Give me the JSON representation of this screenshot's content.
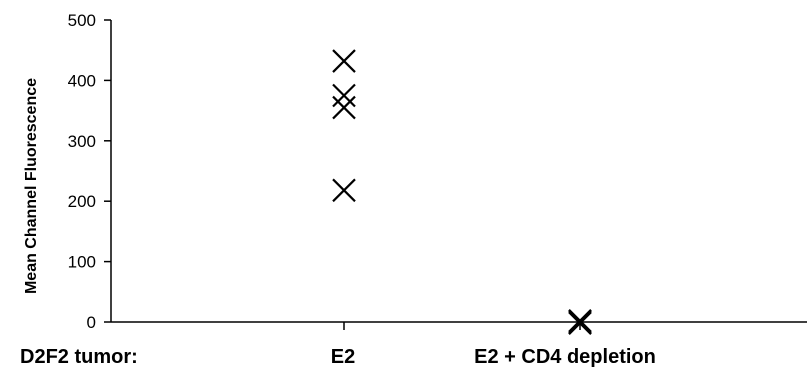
{
  "chart_data": {
    "type": "scatter",
    "ylabel": "Mean Channel Fluorescence",
    "x_prefix_label": "D2F2 tumor:",
    "categories": [
      "E2",
      "E2 + CD4 depletion"
    ],
    "yticks": [
      "0",
      "100",
      "200",
      "300",
      "400",
      "500"
    ],
    "ylim": [
      0,
      500
    ],
    "marker": "x",
    "points": [
      {
        "category": "E2",
        "y": 432
      },
      {
        "category": "E2",
        "y": 375
      },
      {
        "category": "E2",
        "y": 355
      },
      {
        "category": "E2",
        "y": 218
      },
      {
        "category": "E2 + CD4 depletion",
        "y": 2
      },
      {
        "category": "E2 + CD4 depletion",
        "y": 0
      },
      {
        "category": "E2 + CD4 depletion",
        "y": -2
      }
    ],
    "grid": false,
    "legend": "none"
  }
}
